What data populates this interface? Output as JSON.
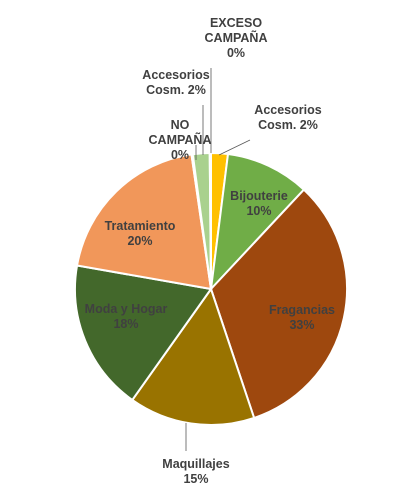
{
  "chart_data": {
    "type": "pie",
    "slices": [
      {
        "label": "Accesorios Cosm.",
        "value_label": "2%",
        "value": 2,
        "color": "#FFC000"
      },
      {
        "label": "Bijouterie",
        "value_label": "10%",
        "value": 10,
        "color": "#70AD47"
      },
      {
        "label": "Fragancias",
        "value_label": "33%",
        "value": 33,
        "color": "#9E480E"
      },
      {
        "label": "Maquillajes",
        "value_label": "15%",
        "value": 15,
        "color": "#997300"
      },
      {
        "label": "Moda y Hogar",
        "value_label": "18%",
        "value": 18,
        "color": "#43682B"
      },
      {
        "label": "Tratamiento",
        "value_label": "20%",
        "value": 20,
        "color": "#F1975A"
      },
      {
        "label": "NO CAMPAÑA",
        "value_label": "0%",
        "value": 0.15,
        "color": "#A9D18E"
      },
      {
        "label": "Accesorios Cosm.",
        "value_label": "2%",
        "value": 2,
        "color": "#A9D18E"
      },
      {
        "label": "EXCESO CAMPAÑA",
        "value_label": "0%",
        "value": 0.15,
        "color": "#8FAADC"
      }
    ],
    "label_lines": {
      "accesorios_right": [
        "Accesorios",
        "Cosm. 2%"
      ],
      "bijouterie": [
        "Bijouterie",
        "10%"
      ],
      "fragancias": [
        "Fragancias",
        "33%"
      ],
      "maquillajes": [
        "Maquillajes",
        "15%"
      ],
      "moda": [
        "Moda y Hogar",
        "18%"
      ],
      "tratamiento": [
        "Tratamiento",
        "20%"
      ],
      "no_campana": [
        "NO",
        "CAMPAÑA",
        "0%"
      ],
      "accesorios_left": [
        "Accesorios",
        "Cosm. 2%"
      ],
      "exceso": [
        "EXCESO",
        "CAMPAÑA",
        "0%"
      ]
    }
  }
}
